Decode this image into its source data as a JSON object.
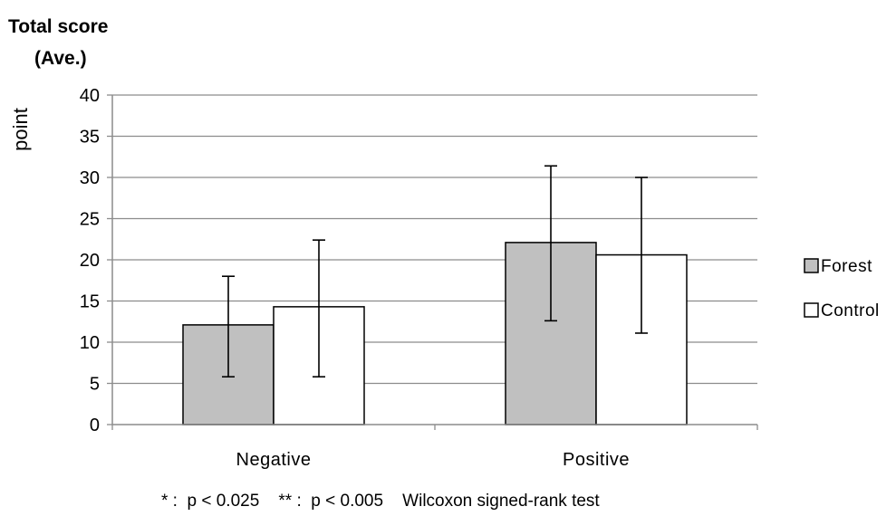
{
  "chart_data": {
    "type": "bar",
    "title_line1": "Total score",
    "title_line2": "(Ave.)",
    "ylabel": "point",
    "xlabel": "",
    "ylim": [
      0,
      40
    ],
    "yticks": [
      0,
      5,
      10,
      15,
      20,
      25,
      30,
      35,
      40
    ],
    "grid": true,
    "legend_position": "right",
    "categories": [
      "Negative",
      "Positive"
    ],
    "series": [
      {
        "name": "Forest",
        "values": [
          12.1,
          22.1
        ],
        "error": [
          [
            5.8,
            18.0
          ],
          [
            12.6,
            31.4
          ]
        ],
        "color": "#c0c0c0"
      },
      {
        "name": "Control",
        "values": [
          14.3,
          20.6
        ],
        "error": [
          [
            5.8,
            22.4
          ],
          [
            11.1,
            30.0
          ]
        ],
        "color": "#ffffff"
      }
    ],
    "note": "* :  p < 0.025    ** :  p < 0.005    Wilcoxon signed-rank test"
  }
}
